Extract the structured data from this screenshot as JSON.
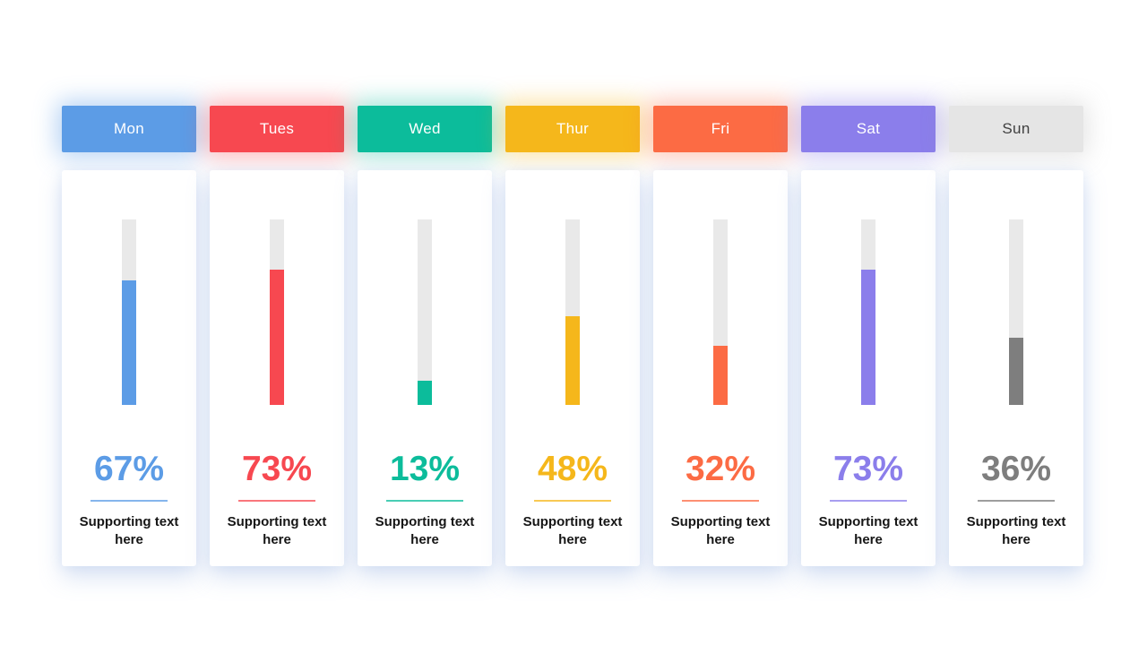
{
  "chart_data": {
    "type": "bar",
    "title": "",
    "categories": [
      "Mon",
      "Tues",
      "Wed",
      "Thur",
      "Fri",
      "Sat",
      "Sun"
    ],
    "values": [
      67,
      73,
      13,
      48,
      32,
      73,
      36
    ],
    "value_unit": "%",
    "ylim": [
      0,
      100
    ],
    "grid": false,
    "legend": "none",
    "orientation": "vertical-gauge-per-category"
  },
  "bar": {
    "track_color": "#E9E9E9"
  },
  "days": [
    {
      "label": "Mon",
      "value": 67,
      "percent_label": "67%",
      "supporting_text": "Supporting text here",
      "accent": "#5C9CE6",
      "header_bg": "#5C9CE6",
      "header_text": "#FFFFFF",
      "glow": "rgba(92,156,230,0.45)"
    },
    {
      "label": "Tues",
      "value": 73,
      "percent_label": "73%",
      "supporting_text": "Supporting text here",
      "accent": "#F74850",
      "header_bg": "#F74850",
      "header_text": "#FFFFFF",
      "glow": "rgba(247,72,80,0.40)"
    },
    {
      "label": "Wed",
      "value": 13,
      "percent_label": "13%",
      "supporting_text": "Supporting text here",
      "accent": "#0CBC9B",
      "header_bg": "#0CBC9B",
      "header_text": "#FFFFFF",
      "glow": "rgba(12,188,155,0.40)"
    },
    {
      "label": "Thur",
      "value": 48,
      "percent_label": "48%",
      "supporting_text": "Supporting text here",
      "accent": "#F5B71B",
      "header_bg": "#F5B71B",
      "header_text": "#FFFFFF",
      "glow": "rgba(245,183,27,0.40)"
    },
    {
      "label": "Fri",
      "value": 32,
      "percent_label": "32%",
      "supporting_text": "Supporting text here",
      "accent": "#FC6B44",
      "header_bg": "#FC6B44",
      "header_text": "#FFFFFF",
      "glow": "rgba(252,107,68,0.40)"
    },
    {
      "label": "Sat",
      "value": 73,
      "percent_label": "73%",
      "supporting_text": "Supporting text here",
      "accent": "#8B7EEB",
      "header_bg": "#8B7EEB",
      "header_text": "#FFFFFF",
      "glow": "rgba(139,126,235,0.45)"
    },
    {
      "label": "Sun",
      "value": 36,
      "percent_label": "36%",
      "supporting_text": "Supporting text here",
      "accent": "#7E7E7E",
      "header_bg": "#E5E5E5",
      "header_text": "#3F3F3F",
      "glow": "rgba(150,150,150,0.25)"
    }
  ]
}
